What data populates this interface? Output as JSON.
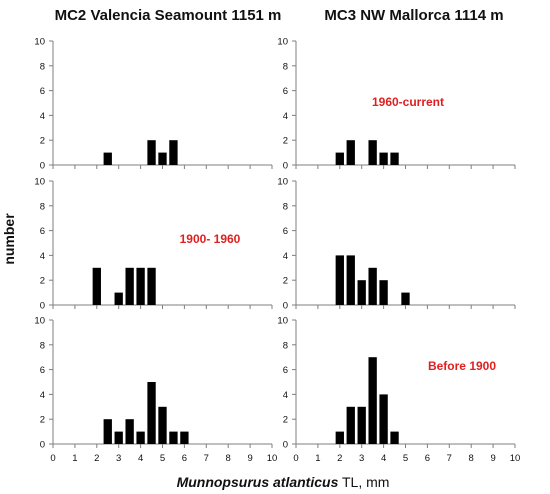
{
  "ylabel": "number",
  "xlabel_species": "Munnopsurus atlanticus",
  "xlabel_rest": " TL, mm",
  "colors": {
    "bar": "#000000",
    "axis": "#7f7f7f",
    "annotation": "#e02020"
  },
  "chart_data": {
    "type": "bar",
    "layout": "grid of 6 histograms, 3 rows by 2 columns",
    "column_titles": [
      "MC2  Valencia Seamount 1151 m",
      "MC3   NW Mallorca  1114 m"
    ],
    "x_ticks": [
      "0",
      "1",
      "2",
      "3",
      "4",
      "5",
      "6",
      "7",
      "8",
      "9",
      "10"
    ],
    "y_ticks": [
      "0",
      "2",
      "4",
      "6",
      "8",
      "10"
    ],
    "xlim": [
      0,
      10
    ],
    "ylim": [
      0,
      10
    ],
    "bar_width": 0.38,
    "grid": false,
    "panels": [
      {
        "row": 0,
        "col": 0,
        "annotation": "",
        "bars": [
          {
            "x": 2.5,
            "y": 1
          },
          {
            "x": 4.5,
            "y": 2
          },
          {
            "x": 5.0,
            "y": 1
          },
          {
            "x": 5.5,
            "y": 2
          }
        ]
      },
      {
        "row": 0,
        "col": 1,
        "annotation": "1960-current",
        "bars": [
          {
            "x": 2.0,
            "y": 1
          },
          {
            "x": 2.5,
            "y": 2
          },
          {
            "x": 3.5,
            "y": 2
          },
          {
            "x": 4.0,
            "y": 1
          },
          {
            "x": 4.5,
            "y": 1
          }
        ]
      },
      {
        "row": 1,
        "col": 0,
        "annotation": "1900- 1960",
        "bars": [
          {
            "x": 2.0,
            "y": 3
          },
          {
            "x": 3.0,
            "y": 1
          },
          {
            "x": 3.5,
            "y": 3
          },
          {
            "x": 4.0,
            "y": 3
          },
          {
            "x": 4.5,
            "y": 3
          }
        ]
      },
      {
        "row": 1,
        "col": 1,
        "annotation": "",
        "bars": [
          {
            "x": 2.0,
            "y": 4
          },
          {
            "x": 2.5,
            "y": 4
          },
          {
            "x": 3.0,
            "y": 2
          },
          {
            "x": 3.5,
            "y": 3
          },
          {
            "x": 4.0,
            "y": 2
          },
          {
            "x": 5.0,
            "y": 1
          }
        ]
      },
      {
        "row": 2,
        "col": 0,
        "annotation": "",
        "bars": [
          {
            "x": 2.5,
            "y": 2
          },
          {
            "x": 3.0,
            "y": 1
          },
          {
            "x": 3.5,
            "y": 2
          },
          {
            "x": 4.0,
            "y": 1
          },
          {
            "x": 4.5,
            "y": 5
          },
          {
            "x": 5.0,
            "y": 3
          },
          {
            "x": 5.5,
            "y": 1
          },
          {
            "x": 6.0,
            "y": 1
          }
        ]
      },
      {
        "row": 2,
        "col": 1,
        "annotation": "Before 1900",
        "bars": [
          {
            "x": 2.0,
            "y": 1
          },
          {
            "x": 2.5,
            "y": 3
          },
          {
            "x": 3.0,
            "y": 3
          },
          {
            "x": 3.5,
            "y": 7
          },
          {
            "x": 4.0,
            "y": 4
          },
          {
            "x": 4.5,
            "y": 1
          }
        ]
      }
    ]
  }
}
